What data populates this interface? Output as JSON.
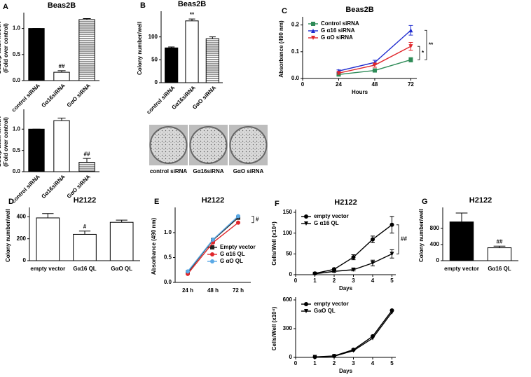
{
  "chart_data": [
    {
      "type": "bar",
      "panel": "A",
      "title": "Beas2B",
      "ylabel": [
        "Gα16/β-actin mRNA",
        "(Fold over control)"
      ],
      "categories": [
        "control siRNA",
        "Gα16siRNA",
        "GαO siRNA"
      ],
      "values": [
        1.0,
        0.16,
        1.17
      ],
      "errors": [
        0.0,
        0.03,
        0.02
      ],
      "fills": [
        "black",
        "white",
        "striped"
      ],
      "annotations": [
        null,
        "##",
        null
      ],
      "ylim": [
        0,
        1.25
      ],
      "yticks": [
        {
          "value": 0,
          "label": "0.0"
        },
        0.5,
        {
          "value": 1,
          "label": "1.0"
        }
      ]
    },
    {
      "type": "bar",
      "ylabel": [
        "GαO/β-actin mRNA",
        "(Fold over control)"
      ],
      "categories": [
        "control siRNA",
        "Gα16siRNA",
        "GαO siRNA"
      ],
      "values": [
        1.0,
        1.2,
        0.22
      ],
      "errors": [
        0.0,
        0.06,
        0.09
      ],
      "fills": [
        "black",
        "white",
        "striped"
      ],
      "annotations": [
        null,
        null,
        "##"
      ],
      "ylim": [
        0,
        1.4
      ],
      "yticks": [
        {
          "value": 0,
          "label": "0.0"
        },
        0.5,
        {
          "value": 1,
          "label": "1.0"
        }
      ]
    },
    {
      "type": "bar",
      "panel": "B",
      "title": "Beas2B",
      "ylabel": [
        "Colony number/well"
      ],
      "categories": [
        "control siRNA",
        "Gα16siRNA",
        "GαO siRNA"
      ],
      "values": [
        76,
        135,
        96
      ],
      "errors": [
        2,
        4,
        4
      ],
      "fills": [
        "black",
        "white",
        "striped"
      ],
      "annotations": [
        null,
        "**",
        null
      ],
      "ylim": [
        0,
        150
      ],
      "yticks": [
        0,
        50,
        100
      ],
      "well_labels": [
        "control siRNA",
        "Gα16siRNA",
        "GαO siRNA"
      ]
    },
    {
      "type": "line",
      "panel": "C",
      "title": "Beas2B",
      "ylabel": [
        "Absorbance (490 nm)"
      ],
      "xlabel": "Hours",
      "x": [
        24,
        48,
        72
      ],
      "xlim": [
        0,
        76
      ],
      "xticks": [
        0,
        24,
        48,
        72
      ],
      "ylim": [
        0,
        0.22
      ],
      "yticks": [
        {
          "value": 0,
          "label": "0.0"
        },
        0.1,
        0.2
      ],
      "legend": "upper left",
      "series": [
        {
          "name": "Control siRNA",
          "color": "#2e8b57",
          "marker": "square",
          "values": [
            0.015,
            0.03,
            0.07
          ],
          "errors": [
            0.003,
            0.004,
            0.008
          ]
        },
        {
          "name": "G α16 siRNA",
          "color": "#1f2ccf",
          "marker": "triangle",
          "values": [
            0.028,
            0.06,
            0.18
          ],
          "errors": [
            0.004,
            0.008,
            0.018
          ]
        },
        {
          "name": "G αO siRNA",
          "color": "#e0262b",
          "marker": "triangle-down",
          "values": [
            0.02,
            0.05,
            0.12
          ],
          "errors": [
            0.004,
            0.008,
            0.015
          ]
        }
      ],
      "annotations": [
        "*",
        "**"
      ]
    },
    {
      "type": "bar",
      "panel": "D",
      "title": "H2122",
      "ylabel": [
        "Colony number/well"
      ],
      "categories": [
        "empty vector",
        "Gα16 QL",
        "GαO QL"
      ],
      "values": [
        390,
        240,
        350
      ],
      "errors": [
        40,
        30,
        20
      ],
      "fills": [
        "white",
        "white",
        "white"
      ],
      "annotations": [
        null,
        "#",
        null
      ],
      "ylim": [
        0,
        460
      ],
      "yticks": [
        0,
        200,
        400
      ]
    },
    {
      "type": "line",
      "panel": "E",
      "title": "H2122",
      "ylabel": [
        "Absorbance (490 nm)"
      ],
      "categories": [
        "24 h",
        "48 h",
        "72 h"
      ],
      "ylim": [
        0,
        1.45
      ],
      "yticks": [
        {
          "value": 0,
          "label": "0.0"
        },
        0.5,
        {
          "value": 1,
          "label": "1.0"
        }
      ],
      "legend": "lower right",
      "series": [
        {
          "name": "Empty vector",
          "color": "#222222",
          "marker": "square",
          "values": [
            0.2,
            0.85,
            1.3
          ]
        },
        {
          "name": "G α16 QL",
          "color": "#e0262b",
          "marker": "circle",
          "values": [
            0.17,
            0.8,
            1.2
          ]
        },
        {
          "name": "G αO QL",
          "color": "#5aa9e6",
          "marker": "circle",
          "values": [
            0.22,
            0.86,
            1.33
          ]
        }
      ],
      "annotations": [
        "#"
      ]
    },
    {
      "type": "line",
      "panel": "F",
      "title": "H2122",
      "ylabel": [
        "Cells/Well (x10⁴)"
      ],
      "xlabel": "Days",
      "x": [
        1,
        2,
        3,
        4,
        5
      ],
      "xlim": [
        0,
        5.2
      ],
      "xticks": [
        0,
        1,
        2,
        3,
        4,
        5
      ],
      "ylim": [
        0,
        150
      ],
      "yticks": [
        0,
        50,
        100,
        150
      ],
      "legend": "upper left",
      "series": [
        {
          "name": "empty vector",
          "color": "#000000",
          "marker": "circle",
          "values": [
            3,
            13,
            42,
            85,
            120
          ],
          "errors": [
            1,
            3,
            6,
            8,
            20
          ]
        },
        {
          "name": "G α16 QL",
          "color": "#000000",
          "marker": "triangle-down",
          "values": [
            2,
            8,
            12,
            28,
            50
          ],
          "errors": [
            1,
            2,
            3,
            7,
            10
          ]
        }
      ],
      "annotations": [
        "##"
      ]
    },
    {
      "type": "line",
      "ylabel": [
        "Cells/Well (x10⁴)"
      ],
      "xlabel": "Days",
      "x": [
        1,
        2,
        3,
        4,
        5
      ],
      "xlim": [
        0,
        5.2
      ],
      "xticks": [
        0,
        1,
        2,
        3,
        4,
        5
      ],
      "ylim": [
        0,
        600
      ],
      "yticks": [
        0,
        300,
        600
      ],
      "legend": "upper left",
      "series": [
        {
          "name": "empty vector",
          "color": "#000000",
          "marker": "circle",
          "values": [
            5,
            15,
            80,
            220,
            490
          ]
        },
        {
          "name": "GαO QL",
          "color": "#000000",
          "marker": "triangle-down",
          "values": [
            4,
            12,
            70,
            200,
            470
          ]
        }
      ]
    },
    {
      "type": "bar",
      "panel": "G",
      "title": "H2122",
      "ylabel": [
        "Colony number/well"
      ],
      "categories": [
        "empty vector",
        "Gα16 QL"
      ],
      "values": [
        960,
        320
      ],
      "errors": [
        220,
        40
      ],
      "fills": [
        "black",
        "white"
      ],
      "annotations": [
        null,
        "##"
      ],
      "ylim": [
        0,
        1250
      ],
      "yticks": [
        0,
        400,
        800
      ]
    }
  ]
}
